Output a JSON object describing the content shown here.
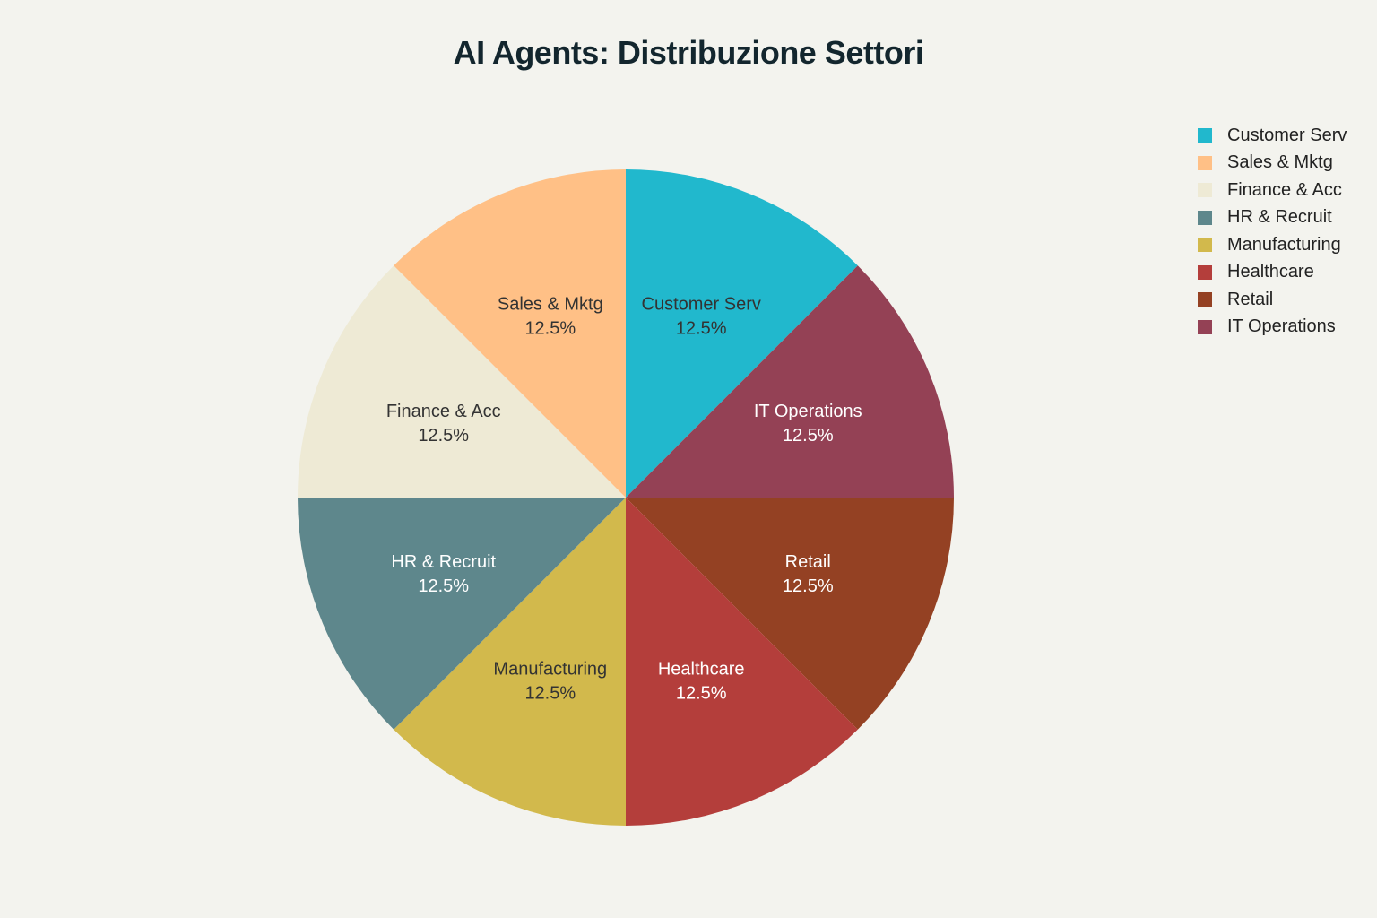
{
  "chart_data": {
    "type": "pie",
    "title": "AI Agents: Distribuzione Settori",
    "legend_position": "top-right",
    "slices": [
      {
        "label": "Customer Serv",
        "percent_label": "12.5%",
        "value": 12.5,
        "color": "#21b8cd",
        "text_color": "#333333"
      },
      {
        "label": "IT Operations",
        "percent_label": "12.5%",
        "value": 12.5,
        "color": "#944155",
        "text_color": "#ffffff"
      },
      {
        "label": "Retail",
        "percent_label": "12.5%",
        "value": 12.5,
        "color": "#944123",
        "text_color": "#ffffff"
      },
      {
        "label": "Healthcare",
        "percent_label": "12.5%",
        "value": 12.5,
        "color": "#b43e3b",
        "text_color": "#ffffff"
      },
      {
        "label": "Manufacturing",
        "percent_label": "12.5%",
        "value": 12.5,
        "color": "#d2b94c",
        "text_color": "#333333"
      },
      {
        "label": "HR & Recruit",
        "percent_label": "12.5%",
        "value": 12.5,
        "color": "#5e878c",
        "text_color": "#ffffff"
      },
      {
        "label": "Finance & Acc",
        "percent_label": "12.5%",
        "value": 12.5,
        "color": "#eeead5",
        "text_color": "#333333"
      },
      {
        "label": "Sales & Mktg",
        "percent_label": "12.5%",
        "value": 12.5,
        "color": "#ffc086",
        "text_color": "#333333"
      }
    ],
    "legend": [
      {
        "label": "Customer Serv",
        "color": "#21b8cd"
      },
      {
        "label": "Sales & Mktg",
        "color": "#ffc086"
      },
      {
        "label": "Finance & Acc",
        "color": "#eeead5"
      },
      {
        "label": "HR & Recruit",
        "color": "#5e878c"
      },
      {
        "label": "Manufacturing",
        "color": "#d2b94c"
      },
      {
        "label": "Healthcare",
        "color": "#b43e3b"
      },
      {
        "label": "Retail",
        "color": "#944123"
      },
      {
        "label": "IT Operations",
        "color": "#944155"
      }
    ]
  }
}
